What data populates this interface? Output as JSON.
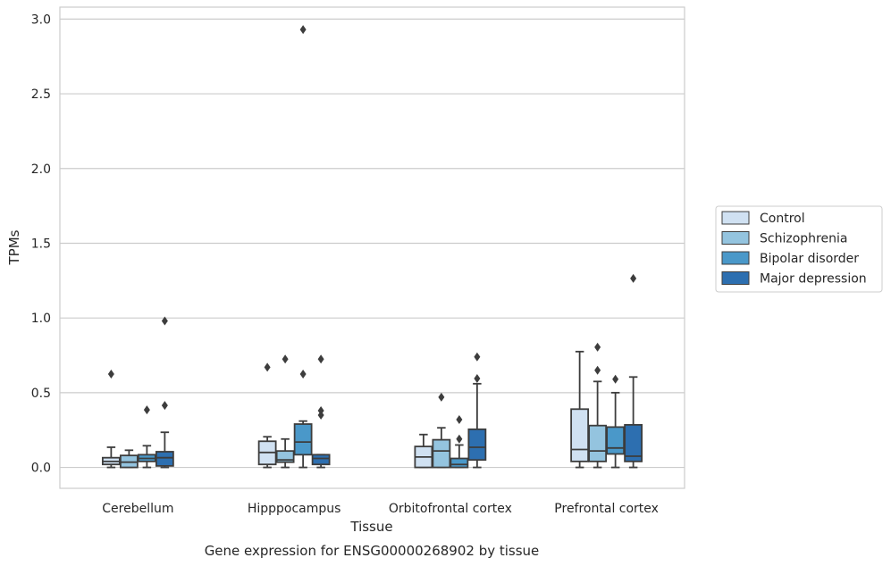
{
  "chart_data": {
    "type": "box",
    "title": "Gene expression for ENSG00000268902 by tissue",
    "xlabel": "Tissue",
    "ylabel": "TPMs",
    "ylim": [
      -0.14,
      3.08
    ],
    "yticks": [
      0.0,
      0.5,
      1.0,
      1.5,
      2.0,
      2.5,
      3.0
    ],
    "ytick_labels": [
      "0.0",
      "0.5",
      "1.0",
      "1.5",
      "2.0",
      "2.5",
      "3.0"
    ],
    "grid": true,
    "legend_position": "right",
    "categories": [
      "Cerebellum",
      "Hipppocampus",
      "Orbitofrontal cortex",
      "Prefrontal cortex"
    ],
    "series": [
      {
        "name": "Control",
        "color": "#d0e1f2",
        "boxes": [
          {
            "whisker_low": 0.0,
            "q1": 0.02,
            "median": 0.04,
            "q3": 0.065,
            "whisker_high": 0.135,
            "outliers": [
              0.625
            ]
          },
          {
            "whisker_low": 0.0,
            "q1": 0.02,
            "median": 0.1,
            "q3": 0.175,
            "whisker_high": 0.205,
            "outliers": [
              0.67
            ]
          },
          {
            "whisker_low": 0.0,
            "q1": 0.0,
            "median": 0.07,
            "q3": 0.14,
            "whisker_high": 0.22,
            "outliers": []
          },
          {
            "whisker_low": 0.0,
            "q1": 0.04,
            "median": 0.12,
            "q3": 0.39,
            "whisker_high": 0.775,
            "outliers": []
          }
        ]
      },
      {
        "name": "Schizophrenia",
        "color": "#94c4df",
        "boxes": [
          {
            "whisker_low": 0.0,
            "q1": 0.0,
            "median": 0.035,
            "q3": 0.08,
            "whisker_high": 0.115,
            "outliers": []
          },
          {
            "whisker_low": 0.0,
            "q1": 0.035,
            "median": 0.05,
            "q3": 0.11,
            "whisker_high": 0.19,
            "outliers": [
              0.725
            ]
          },
          {
            "whisker_low": 0.0,
            "q1": 0.0,
            "median": 0.11,
            "q3": 0.185,
            "whisker_high": 0.265,
            "outliers": [
              0.47
            ]
          },
          {
            "whisker_low": 0.0,
            "q1": 0.04,
            "median": 0.11,
            "q3": 0.28,
            "whisker_high": 0.575,
            "outliers": [
              0.65,
              0.805
            ]
          }
        ]
      },
      {
        "name": "Bipolar disorder",
        "color": "#4a98c9",
        "boxes": [
          {
            "whisker_low": 0.0,
            "q1": 0.04,
            "median": 0.06,
            "q3": 0.085,
            "whisker_high": 0.145,
            "outliers": [
              0.385
            ]
          },
          {
            "whisker_low": 0.0,
            "q1": 0.085,
            "median": 0.17,
            "q3": 0.29,
            "whisker_high": 0.31,
            "outliers": [
              0.625,
              2.93
            ]
          },
          {
            "whisker_low": 0.0,
            "q1": 0.0,
            "median": 0.02,
            "q3": 0.06,
            "whisker_high": 0.15,
            "outliers": [
              0.19,
              0.32
            ]
          },
          {
            "whisker_low": 0.0,
            "q1": 0.09,
            "median": 0.13,
            "q3": 0.27,
            "whisker_high": 0.5,
            "outliers": [
              0.59
            ]
          }
        ]
      },
      {
        "name": "Major depression",
        "color": "#2d6fb0",
        "boxes": [
          {
            "whisker_low": 0.0,
            "q1": 0.01,
            "median": 0.065,
            "q3": 0.105,
            "whisker_high": 0.235,
            "outliers": [
              0.415,
              0.98
            ]
          },
          {
            "whisker_low": 0.0,
            "q1": 0.02,
            "median": 0.06,
            "q3": 0.085,
            "whisker_high": 0.085,
            "outliers": [
              0.35,
              0.38,
              0.725
            ]
          },
          {
            "whisker_low": 0.0,
            "q1": 0.05,
            "median": 0.135,
            "q3": 0.255,
            "whisker_high": 0.56,
            "outliers": [
              0.595,
              0.74
            ]
          },
          {
            "whisker_low": 0.0,
            "q1": 0.04,
            "median": 0.075,
            "q3": 0.285,
            "whisker_high": 0.605,
            "outliers": [
              1.265
            ]
          }
        ]
      }
    ]
  }
}
